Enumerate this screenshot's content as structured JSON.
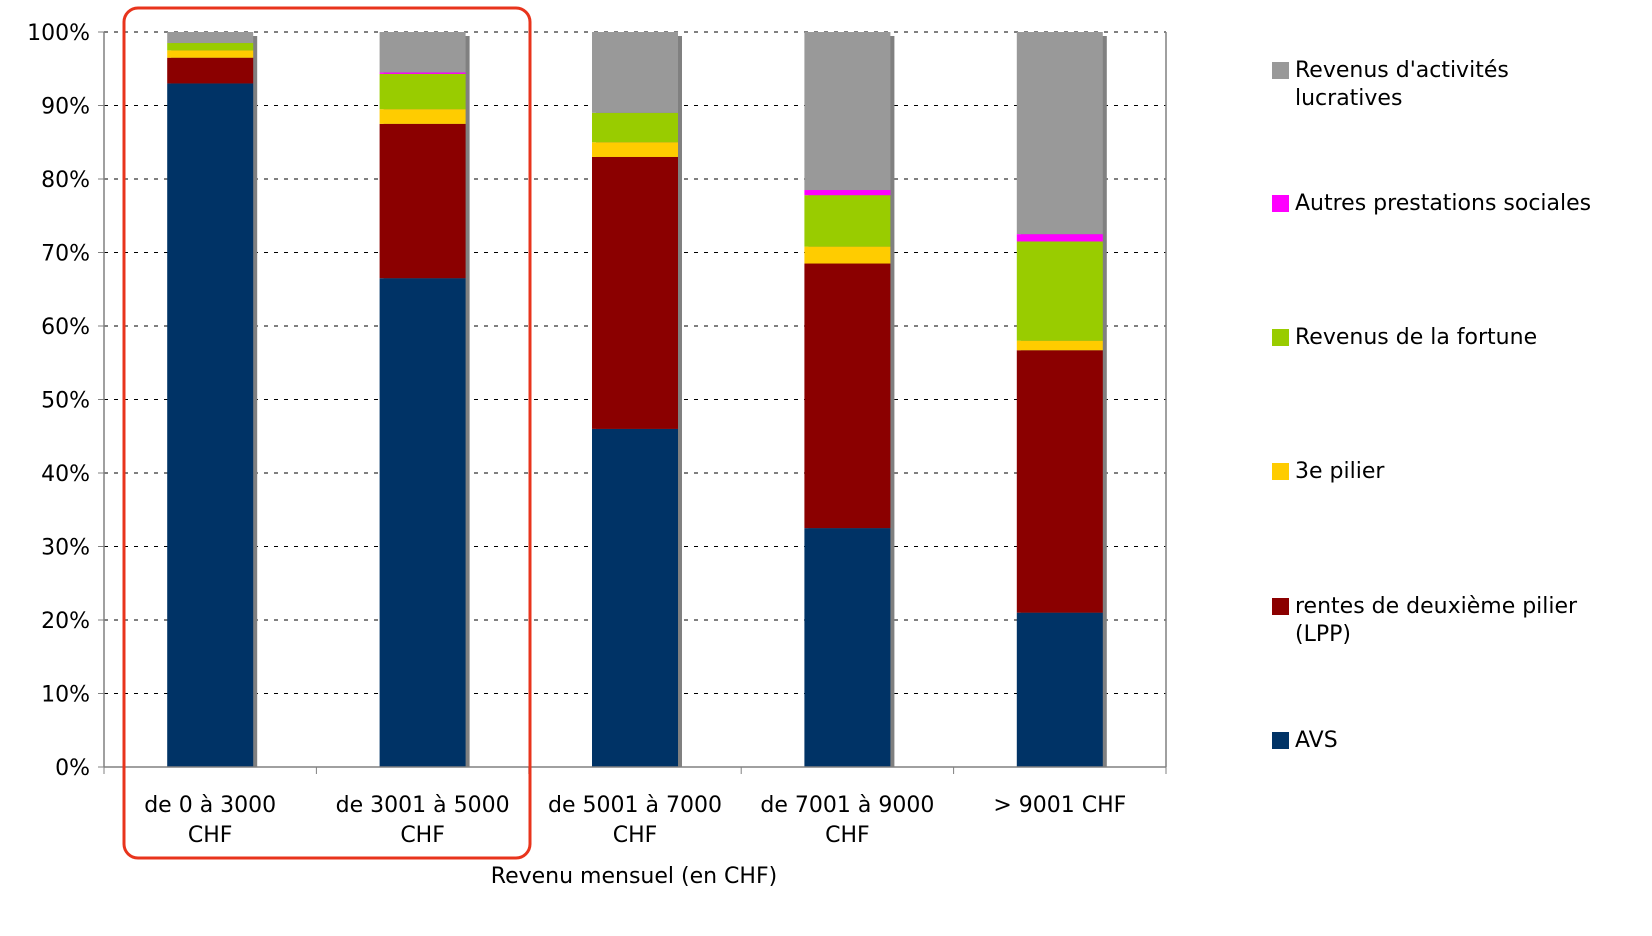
{
  "chart_data": {
    "type": "bar",
    "stacked": true,
    "percent_stacked": true,
    "xlabel": "Revenu mensuel (en CHF)",
    "ylabel": "",
    "ylim": [
      0,
      100
    ],
    "yticks": [
      "0%",
      "10%",
      "20%",
      "30%",
      "40%",
      "50%",
      "60%",
      "70%",
      "80%",
      "90%",
      "100%"
    ],
    "grid": "horizontal dashed",
    "legend_position": "right",
    "categories": [
      "de 0 à 3000\nCHF",
      "de 3001 à 5000\nCHF",
      "de 5001 à 7000\nCHF",
      "de 7001 à 9000\nCHF",
      "> 9001 CHF"
    ],
    "series": [
      {
        "name": "AVS",
        "color": "#003366",
        "values": [
          93,
          66.5,
          46,
          32.5,
          21
        ]
      },
      {
        "name": "rentes de deuxième pilier\n(LPP)",
        "color": "#8B0000",
        "values": [
          3.5,
          21,
          37,
          36,
          35.7
        ]
      },
      {
        "name": "3e pilier",
        "color": "#FFCC00",
        "values": [
          1,
          2,
          2,
          2.3,
          1.3
        ]
      },
      {
        "name": "Revenus de la fortune",
        "color": "#99CC00",
        "values": [
          1,
          4.8,
          4,
          7,
          13.5
        ]
      },
      {
        "name": "Autres prestations sociales",
        "color": "#FF00FF",
        "values": [
          0,
          0.2,
          0,
          0.7,
          1
        ]
      },
      {
        "name": "Revenus d'activités\nlucratives",
        "color": "#999999",
        "values": [
          1.5,
          5.5,
          11,
          21.5,
          27.5
        ]
      }
    ],
    "annotation": {
      "type": "highlight-box",
      "color": "#E8341C",
      "covers_categories": [
        0,
        1
      ]
    }
  }
}
